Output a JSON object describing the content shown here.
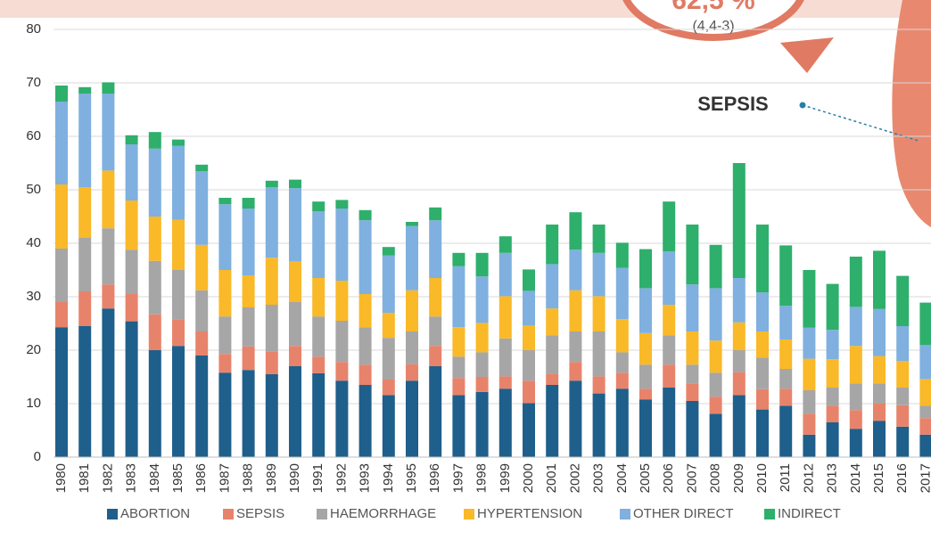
{
  "chart_data": {
    "type": "bar",
    "stacked": true,
    "annotations": [
      "62,5 %",
      "(4,4-3)",
      "SEPSIS"
    ],
    "categories": [
      "1980",
      "1981",
      "1982",
      "1983",
      "1984",
      "1985",
      "1986",
      "1987",
      "1988",
      "1989",
      "1990",
      "1991",
      "1992",
      "1993",
      "1994",
      "1995",
      "1996",
      "1997",
      "1998",
      "1999",
      "2000",
      "2001",
      "2002",
      "2003",
      "2004",
      "2005",
      "2006",
      "2007",
      "2008",
      "2009",
      "2010",
      "2011",
      "2012",
      "2013",
      "2014",
      "2015",
      "2016",
      "2017"
    ],
    "series": [
      {
        "name": "ABORTION",
        "color": "#1f5f8b",
        "values": [
          24.3,
          24.5,
          27.8,
          25.4,
          20,
          20.8,
          19,
          15.8,
          16.3,
          15.5,
          17,
          15.7,
          14.3,
          13.5,
          11.6,
          14.3,
          17,
          11.6,
          12.2,
          12.8,
          10.1,
          13.5,
          14.3,
          11.9,
          12.8,
          10.8,
          13,
          10.5,
          8.1,
          11.6,
          8.9,
          9.6,
          4.2,
          6.5,
          5.3,
          6.8,
          5.7,
          4.2
        ]
      },
      {
        "name": "SEPSIS",
        "color": "#e8836b",
        "values": [
          4.7,
          6.5,
          4.5,
          5.1,
          6.7,
          5,
          4.5,
          3.5,
          4.4,
          4.3,
          3.8,
          3.1,
          3.5,
          3.8,
          2.9,
          3.1,
          3.8,
          3.2,
          2.8,
          2.3,
          4.2,
          2.1,
          3.5,
          3.2,
          3,
          2,
          4.3,
          3.3,
          3.2,
          4.3,
          3.8,
          3.2,
          3.9,
          3.1,
          3.5,
          3.2,
          4,
          3.1
        ]
      },
      {
        "name": "HAEMORRHAGE",
        "color": "#a6a6a6",
        "values": [
          10,
          10,
          10.5,
          8.3,
          10,
          9.2,
          7.7,
          7,
          7.3,
          8.7,
          8.2,
          7.5,
          7.7,
          7,
          7.8,
          6.1,
          5.5,
          4,
          4.6,
          7.1,
          5.7,
          7.2,
          5.7,
          8.4,
          3.8,
          4.5,
          5.5,
          3.5,
          4.5,
          4.1,
          5.9,
          3.7,
          4.4,
          3.4,
          5,
          3.8,
          3.3,
          2.3
        ]
      },
      {
        "name": "HYPERTENSION",
        "color": "#f9b928",
        "values": [
          12,
          9.5,
          10.8,
          9.2,
          8.3,
          9.4,
          8.5,
          8.7,
          6,
          8.8,
          7.6,
          7.2,
          7.5,
          6.2,
          4.7,
          7.7,
          7.2,
          5.5,
          5.5,
          7.9,
          4.6,
          5,
          7.7,
          6.6,
          6.2,
          5.9,
          5.7,
          6.2,
          6,
          5.2,
          4.9,
          5.5,
          5.9,
          5.3,
          7,
          5.1,
          5,
          5
        ]
      },
      {
        "name": "OTHER DIRECT",
        "color": "#7fb0df",
        "values": [
          15.5,
          17.5,
          14.4,
          10.5,
          12.7,
          13.8,
          13.8,
          12.3,
          12.5,
          13.2,
          13.7,
          12.5,
          13.5,
          13.8,
          10.7,
          12,
          10.8,
          11.4,
          8.7,
          8.1,
          6.5,
          8.3,
          7.6,
          8.1,
          9.6,
          8.4,
          10,
          8.8,
          9.8,
          8.3,
          7.3,
          6.3,
          5.8,
          5.5,
          7.3,
          8.8,
          6.5,
          6.4
        ]
      },
      {
        "name": "INDIRECT",
        "color": "#2eaf6c",
        "values": [
          3,
          1.2,
          2.1,
          1.7,
          3.1,
          1.2,
          1.2,
          1.2,
          2,
          1.2,
          1.6,
          1.8,
          1.6,
          1.9,
          1.6,
          0.8,
          2.4,
          2.5,
          4.4,
          3.1,
          4,
          7.4,
          7,
          5.3,
          4.7,
          7.3,
          9.3,
          11.2,
          8.1,
          21.5,
          12.7,
          11.3,
          10.8,
          8.6,
          9.4,
          10.9,
          9.4,
          7.9
        ]
      }
    ],
    "ylim": [
      0,
      80
    ],
    "yticks": [
      0,
      10,
      20,
      30,
      40,
      50,
      60,
      70,
      80
    ],
    "grid": true,
    "legend": "bottom"
  }
}
